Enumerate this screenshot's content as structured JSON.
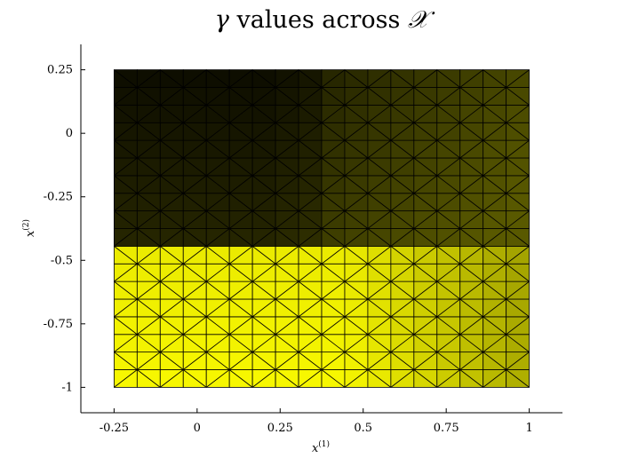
{
  "chart_data": {
    "type": "heatmap",
    "title_parts": [
      "γ",
      " values across ",
      "𝒳"
    ],
    "xlabel": "x",
    "xlabel_sup": "(1)",
    "ylabel": "x",
    "ylabel_sup": "(2)",
    "xlim": [
      -0.35,
      1.1
    ],
    "ylim": [
      -1.1,
      0.35
    ],
    "data_extent": {
      "x": [
        -0.25,
        1.0
      ],
      "y": [
        -1.0,
        0.25
      ]
    },
    "x_ticks": [
      -0.25,
      0,
      0.25,
      0.5,
      0.75,
      1
    ],
    "x_tick_labels": [
      "-0.25",
      "0",
      "0.25",
      "0.5",
      "0.75",
      "1"
    ],
    "y_ticks": [
      0.25,
      0,
      -0.25,
      -0.5,
      -0.75,
      -1
    ],
    "y_tick_labels": [
      "0.25",
      "0",
      "-0.25",
      "-0.5",
      "-0.75",
      "-1"
    ],
    "mesh_cells": [
      18,
      18
    ],
    "colormap": [
      "#000000",
      "#ffff00"
    ],
    "gamma_min": 0,
    "gamma_max": 1,
    "grid": false,
    "colors": {
      "mesh_edge": "#000000",
      "axis": "#000000",
      "background": "#ffffff"
    }
  }
}
